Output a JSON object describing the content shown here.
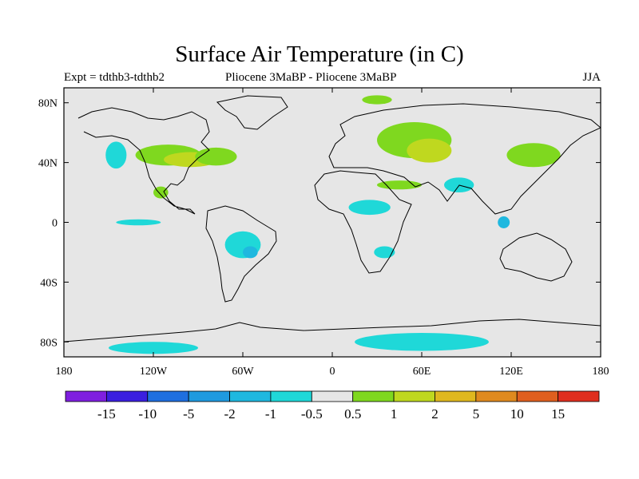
{
  "title": "Surface Air Temperature (in C)",
  "subtitle_left": "Expt = tdthb3-tdthb2",
  "subtitle_center": "Pliocene   3MaBP - Pliocene   3MaBP",
  "subtitle_right": "JJA",
  "colors": {
    "ocean_land_background": "#e6e6e6",
    "coastline": "#000000"
  },
  "map": {
    "lon_range": [
      -180,
      180
    ],
    "lat_range": [
      -90,
      90
    ],
    "x_ticks": [
      {
        "lon": -180,
        "label": "180"
      },
      {
        "lon": -120,
        "label": "120W"
      },
      {
        "lon": -60,
        "label": "60W"
      },
      {
        "lon": 0,
        "label": "0"
      },
      {
        "lon": 60,
        "label": "60E"
      },
      {
        "lon": 120,
        "label": "120E"
      },
      {
        "lon": 180,
        "label": "180"
      }
    ],
    "y_ticks": [
      {
        "lat": 80,
        "label": "80N"
      },
      {
        "lat": 40,
        "label": "40N"
      },
      {
        "lat": 0,
        "label": "0"
      },
      {
        "lat": -40,
        "label": "40S"
      },
      {
        "lat": -80,
        "label": "80S"
      }
    ]
  },
  "colorbar": {
    "colors": [
      "#7f1fdf",
      "#3b1fdf",
      "#1f6fdf",
      "#1f9adf",
      "#1fb8df",
      "#1fd8d8",
      "#e6e6e6",
      "#7fd81f",
      "#bfd81f",
      "#dfb81f",
      "#df8a1f",
      "#df5f1f",
      "#df2f1f"
    ],
    "labels": [
      "-15",
      "-10",
      "-5",
      "-2",
      "-1",
      "-0.5",
      "0.5",
      "1",
      "2",
      "5",
      "10",
      "15"
    ]
  },
  "regions": [
    {
      "lon": -110,
      "lat": 45,
      "rx": 22,
      "ry": 7,
      "color": "#7fd81f"
    },
    {
      "lon": -95,
      "lat": 42,
      "rx": 18,
      "ry": 5,
      "color": "#bfd81f"
    },
    {
      "lon": -78,
      "lat": 44,
      "rx": 14,
      "ry": 6,
      "color": "#7fd81f"
    },
    {
      "lon": -115,
      "lat": 20,
      "rx": 5,
      "ry": 4,
      "color": "#7fd81f"
    },
    {
      "lon": -145,
      "lat": 45,
      "rx": 7,
      "ry": 9,
      "color": "#1fd8d8"
    },
    {
      "lon": -130,
      "lat": 0,
      "rx": 15,
      "ry": 2,
      "color": "#1fd8d8"
    },
    {
      "lon": -60,
      "lat": -15,
      "rx": 12,
      "ry": 9,
      "color": "#1fd8d8"
    },
    {
      "lon": -55,
      "lat": -20,
      "rx": 5,
      "ry": 4,
      "color": "#1fb8df"
    },
    {
      "lon": 30,
      "lat": 82,
      "rx": 10,
      "ry": 3,
      "color": "#7fd81f"
    },
    {
      "lon": 55,
      "lat": 55,
      "rx": 25,
      "ry": 12,
      "color": "#7fd81f"
    },
    {
      "lon": 65,
      "lat": 48,
      "rx": 15,
      "ry": 8,
      "color": "#bfd81f"
    },
    {
      "lon": 135,
      "lat": 45,
      "rx": 18,
      "ry": 8,
      "color": "#7fd81f"
    },
    {
      "lon": 45,
      "lat": 25,
      "rx": 15,
      "ry": 3,
      "color": "#7fd81f"
    },
    {
      "lon": 25,
      "lat": 10,
      "rx": 14,
      "ry": 5,
      "color": "#1fd8d8"
    },
    {
      "lon": 35,
      "lat": -20,
      "rx": 7,
      "ry": 4,
      "color": "#1fd8d8"
    },
    {
      "lon": 85,
      "lat": 25,
      "rx": 10,
      "ry": 5,
      "color": "#1fd8d8"
    },
    {
      "lon": 115,
      "lat": 0,
      "rx": 4,
      "ry": 4,
      "color": "#1fb8df"
    },
    {
      "lon": 60,
      "lat": -80,
      "rx": 45,
      "ry": 6,
      "color": "#1fd8d8"
    },
    {
      "lon": -120,
      "lat": -84,
      "rx": 30,
      "ry": 4,
      "color": "#1fd8d8"
    }
  ]
}
